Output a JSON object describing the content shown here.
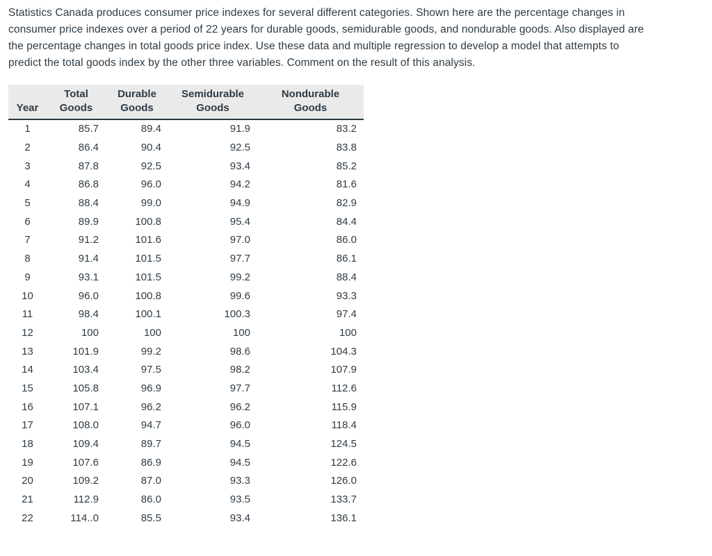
{
  "intro": {
    "lines": [
      "Statistics Canada produces consumer price indexes for several different categories. Shown here are the percentage changes in",
      "consumer price indexes over a period of 22 years for durable goods, semidurable goods, and nondurable goods. Also displayed are",
      "the percentage changes in total goods price index. Use these data and multiple regression to develop a model that attempts to",
      "predict the total goods index by the other three variables. Comment on the result of this analysis."
    ]
  },
  "table": {
    "headers": [
      "Year",
      "Total Goods",
      "Durable Goods",
      "Semidurable Goods",
      "Nondurable Goods"
    ],
    "rows": [
      [
        "1",
        "85.7",
        "89.4",
        "91.9",
        "83.2"
      ],
      [
        "2",
        "86.4",
        "90.4",
        "92.5",
        "83.8"
      ],
      [
        "3",
        "87.8",
        "92.5",
        "93.4",
        "85.2"
      ],
      [
        "4",
        "86.8",
        "96.0",
        "94.2",
        "81.6"
      ],
      [
        "5",
        "88.4",
        "99.0",
        "94.9",
        "82.9"
      ],
      [
        "6",
        "89.9",
        "100.8",
        "95.4",
        "84.4"
      ],
      [
        "7",
        "91.2",
        "101.6",
        "97.0",
        "86.0"
      ],
      [
        "8",
        "91.4",
        "101.5",
        "97.7",
        "86.1"
      ],
      [
        "9",
        "93.1",
        "101.5",
        "99.2",
        "88.4"
      ],
      [
        "10",
        "96.0",
        "100.8",
        "99.6",
        "93.3"
      ],
      [
        "11",
        "98.4",
        "100.1",
        "100.3",
        "97.4"
      ],
      [
        "12",
        "100",
        "100",
        "100",
        "100"
      ],
      [
        "13",
        "101.9",
        "99.2",
        "98.6",
        "104.3"
      ],
      [
        "14",
        "103.4",
        "97.5",
        "98.2",
        "107.9"
      ],
      [
        "15",
        "105.8",
        "96.9",
        "97.7",
        "112.6"
      ],
      [
        "16",
        "107.1",
        "96.2",
        "96.2",
        "115.9"
      ],
      [
        "17",
        "108.0",
        "94.7",
        "96.0",
        "118.4"
      ],
      [
        "18",
        "109.4",
        "89.7",
        "94.5",
        "124.5"
      ],
      [
        "19",
        "107.6",
        "86.9",
        "94.5",
        "122.6"
      ],
      [
        "20",
        "109.2",
        "87.0",
        "93.3",
        "126.0"
      ],
      [
        "21",
        "112.9",
        "86.0",
        "93.5",
        "133.7"
      ],
      [
        "22",
        "114..0",
        "85.5",
        "93.4",
        "136.1"
      ]
    ]
  },
  "colors": {
    "text": "#2e3b45",
    "header_background": "#eaeaea",
    "header_rule": "#2b3842",
    "page_background": "#ffffff"
  }
}
